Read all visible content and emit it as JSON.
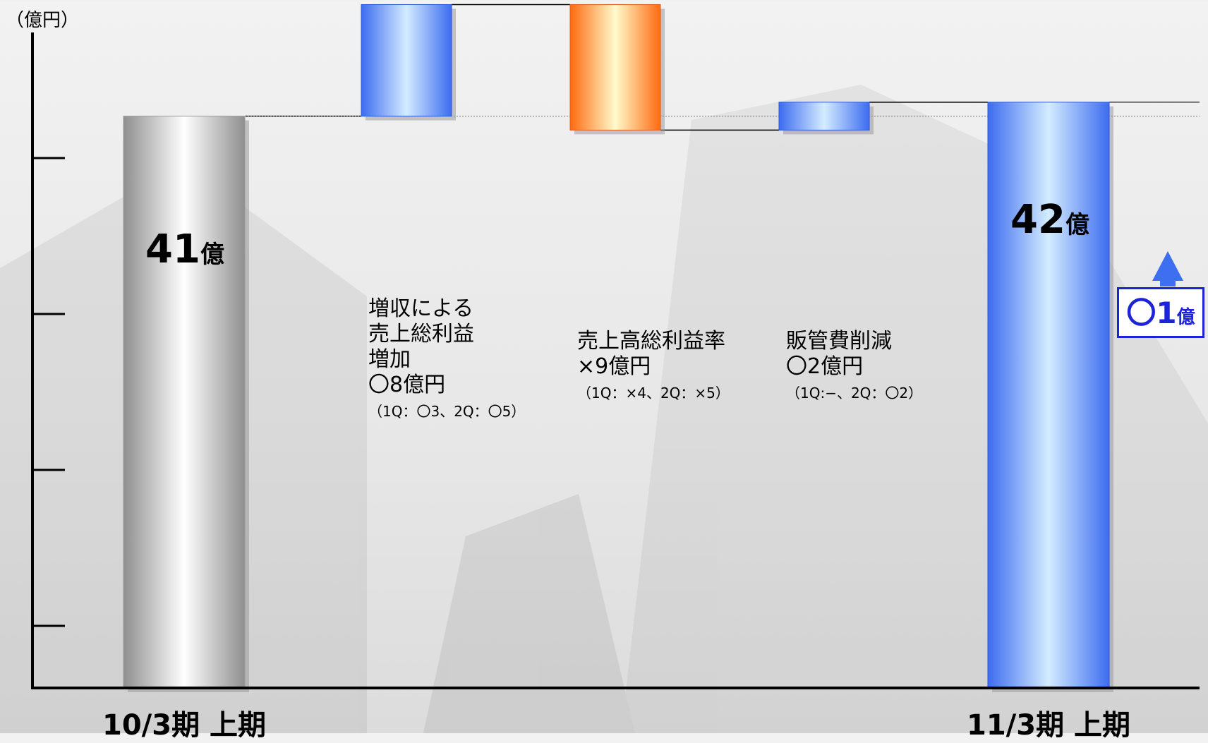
{
  "chart_data": {
    "type": "bar",
    "subtype": "waterfall",
    "unit_label": "（億円）",
    "ylim": [
      0,
      47
    ],
    "y_ticks_shown": true,
    "y_tick_labels_shown": false,
    "grid": false,
    "categories": [
      "10/3期 上期",
      "",
      "",
      "",
      "11/3期 上期"
    ],
    "steps": [
      {
        "kind": "total",
        "value": 41,
        "value_label": "41",
        "value_suffix": "億",
        "label": "10/3期 上期",
        "color": "#c8c8c8"
      },
      {
        "kind": "increase",
        "value": 8,
        "lines": [
          "増収による",
          "売上総利益",
          "増加",
          "〇8億円"
        ],
        "note": "（1Q：〇3、2Q：〇5）",
        "color": "#4a78f0"
      },
      {
        "kind": "decrease",
        "value": -9,
        "lines": [
          "売上高総利益率",
          "×9億円"
        ],
        "note": "（1Q：×4、2Q：×5）",
        "color": "#ff7a1a"
      },
      {
        "kind": "increase",
        "value": 2,
        "lines": [
          "販管費削減",
          "〇2億円"
        ],
        "note": "（1Q:−、2Q：〇2）",
        "color": "#4a78f0"
      },
      {
        "kind": "total",
        "value": 42,
        "value_label": "42",
        "value_suffix": "億",
        "label": "11/3期 上期",
        "color": "#3e6ff0"
      }
    ],
    "delta": {
      "value_label": "〇1",
      "suffix": "億",
      "direction": "up",
      "color": "#1d23d6"
    }
  }
}
